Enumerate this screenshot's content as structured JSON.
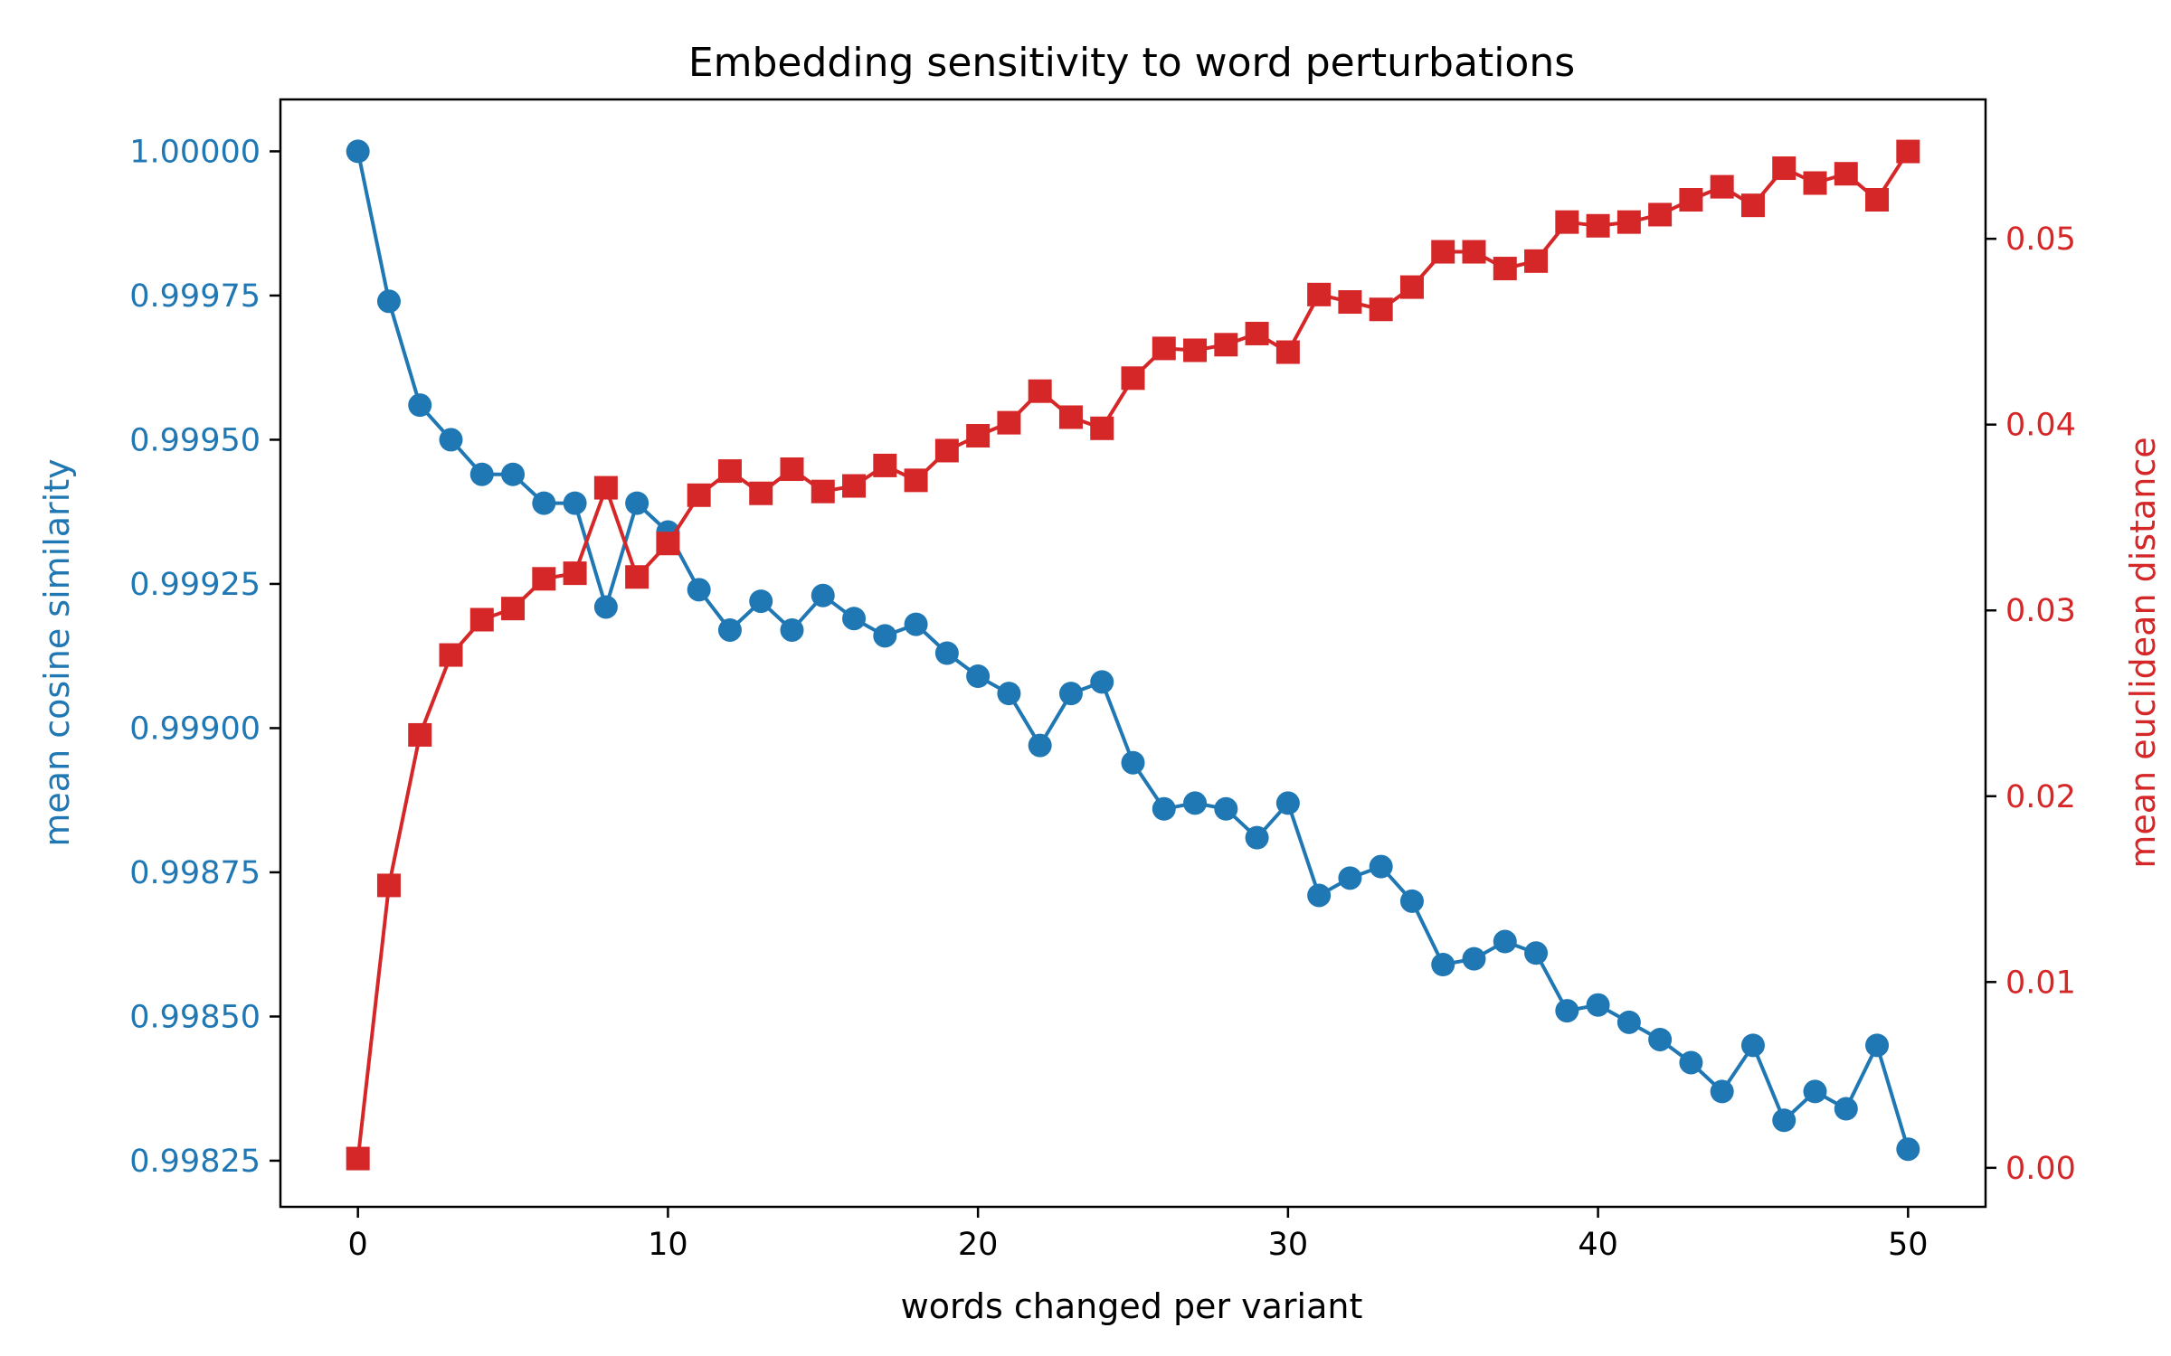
{
  "chart_data": {
    "type": "line",
    "title": "Embedding sensitivity to word perturbations",
    "xlabel": "words changed per variant",
    "ylabel_left": "mean cosine similarity",
    "ylabel_right": "mean euclidean distance",
    "xlim": [
      -2.5,
      52.5
    ],
    "ylim_left": [
      0.99817,
      1.00009
    ],
    "ylim_right": [
      -0.0021,
      0.0575
    ],
    "x_ticks": [
      0,
      10,
      20,
      30,
      40,
      50
    ],
    "x_tick_labels": [
      "0",
      "10",
      "20",
      "30",
      "40",
      "50"
    ],
    "y_left_ticks": [
      0.99825,
      0.9985,
      0.99875,
      0.999,
      0.99925,
      0.9995,
      0.99975,
      1.0
    ],
    "y_left_tick_labels": [
      "0.99825",
      "0.99850",
      "0.99875",
      "0.99900",
      "0.99925",
      "0.99950",
      "0.99975",
      "1.00000"
    ],
    "y_right_ticks": [
      0.0,
      0.01,
      0.02,
      0.03,
      0.04,
      0.05
    ],
    "y_right_tick_labels": [
      "0.00",
      "0.01",
      "0.02",
      "0.03",
      "0.04",
      "0.05"
    ],
    "grid": false,
    "x": [
      0,
      1,
      2,
      3,
      4,
      5,
      6,
      7,
      8,
      9,
      10,
      11,
      12,
      13,
      14,
      15,
      16,
      17,
      18,
      19,
      20,
      21,
      22,
      23,
      24,
      25,
      26,
      27,
      28,
      29,
      30,
      31,
      32,
      33,
      34,
      35,
      36,
      37,
      38,
      39,
      40,
      41,
      42,
      43,
      44,
      45,
      46,
      47,
      48,
      49,
      50
    ],
    "series": [
      {
        "axis": "left",
        "color": "#1f77b4",
        "marker": "circle",
        "values": [
          1.0,
          0.99974,
          0.99956,
          0.9995,
          0.99944,
          0.99944,
          0.99939,
          0.99939,
          0.99921,
          0.99939,
          0.99934,
          0.99924,
          0.99917,
          0.99922,
          0.99917,
          0.99923,
          0.99919,
          0.99916,
          0.99918,
          0.99913,
          0.99909,
          0.99906,
          0.99897,
          0.99906,
          0.99908,
          0.99894,
          0.99886,
          0.99887,
          0.99886,
          0.99881,
          0.99887,
          0.99871,
          0.99874,
          0.99876,
          0.9987,
          0.99859,
          0.9986,
          0.99863,
          0.99861,
          0.99851,
          0.99852,
          0.99849,
          0.99846,
          0.99842,
          0.99837,
          0.99845,
          0.99832,
          0.99837,
          0.99834,
          0.99845,
          0.99827
        ]
      },
      {
        "axis": "right",
        "color": "#d62728",
        "marker": "square",
        "values": [
          0.0005,
          0.0152,
          0.0233,
          0.0276,
          0.0295,
          0.0301,
          0.0317,
          0.032,
          0.0366,
          0.0318,
          0.0336,
          0.0362,
          0.0375,
          0.0363,
          0.0376,
          0.0364,
          0.0367,
          0.0378,
          0.037,
          0.0386,
          0.0394,
          0.0401,
          0.0418,
          0.0404,
          0.0398,
          0.0425,
          0.0441,
          0.044,
          0.0443,
          0.0449,
          0.0439,
          0.047,
          0.0466,
          0.0462,
          0.0474,
          0.0493,
          0.0493,
          0.0484,
          0.0488,
          0.0509,
          0.0507,
          0.0509,
          0.0513,
          0.0521,
          0.0528,
          0.0518,
          0.0538,
          0.053,
          0.0535,
          0.0521,
          0.0547
        ]
      }
    ]
  }
}
